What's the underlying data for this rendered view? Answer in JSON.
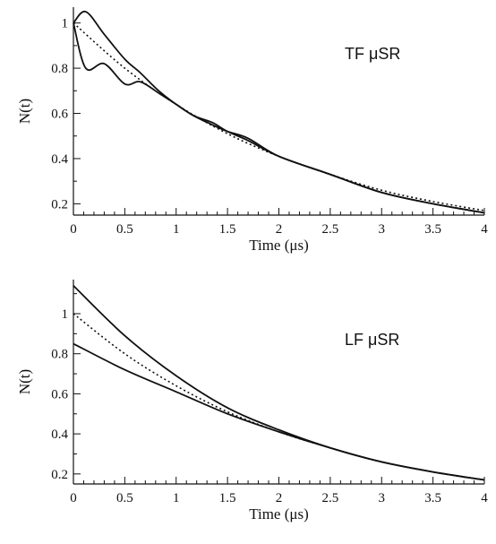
{
  "chart_data": [
    {
      "type": "line",
      "annotation": "TF μSR",
      "xlabel": "Time (μs)",
      "ylabel": "N(t)",
      "xlim": [
        0,
        4
      ],
      "ylim": [
        0.15,
        1.07
      ],
      "x_ticks": [
        "0",
        "0.5",
        "1",
        "1.5",
        "2",
        "2.5",
        "3",
        "3.5",
        "4"
      ],
      "y_ticks": [
        "0.2",
        "0.4",
        "0.6",
        "0.8",
        "1"
      ],
      "x_ticks_values": [
        0,
        0.5,
        1,
        1.5,
        2,
        2.5,
        3,
        3.5,
        4
      ],
      "y_ticks_values": [
        0.2,
        0.4,
        0.6,
        0.8,
        1
      ],
      "series": [
        {
          "style": "solid",
          "x": [
            0,
            0.12,
            0.3,
            0.5,
            0.65,
            0.83,
            1.0,
            1.17,
            1.35,
            1.5,
            1.7,
            2.0,
            2.5,
            3.0,
            3.5,
            4.0
          ],
          "y": [
            1.0,
            1.05,
            0.95,
            0.84,
            0.78,
            0.7,
            0.64,
            0.59,
            0.55,
            0.52,
            0.49,
            0.41,
            0.33,
            0.25,
            0.2,
            0.16
          ]
        },
        {
          "style": "solid",
          "x": [
            0,
            0.12,
            0.3,
            0.5,
            0.65,
            0.83,
            1.0,
            1.17,
            1.35,
            1.5,
            1.7,
            2.0,
            2.5,
            3.0,
            3.5,
            4.0
          ],
          "y": [
            1.0,
            0.8,
            0.82,
            0.73,
            0.74,
            0.69,
            0.64,
            0.59,
            0.56,
            0.52,
            0.48,
            0.41,
            0.33,
            0.25,
            0.2,
            0.16
          ]
        },
        {
          "style": "dotted",
          "x": [
            0,
            0.5,
            1,
            1.5,
            2,
            2.5,
            3,
            3.5,
            4
          ],
          "y": [
            1.0,
            0.8,
            0.64,
            0.51,
            0.41,
            0.33,
            0.26,
            0.21,
            0.17
          ]
        }
      ]
    },
    {
      "type": "line",
      "annotation": "LF μSR",
      "xlabel": "Time (μs)",
      "ylabel": "N(t)",
      "xlim": [
        0,
        4
      ],
      "ylim": [
        0.15,
        1.17
      ],
      "x_ticks": [
        "0",
        "0.5",
        "1",
        "1.5",
        "2",
        "2.5",
        "3",
        "3.5",
        "4"
      ],
      "y_ticks": [
        "0.2",
        "0.4",
        "0.6",
        "0.8",
        "1"
      ],
      "x_ticks_values": [
        0,
        0.5,
        1,
        1.5,
        2,
        2.5,
        3,
        3.5,
        4
      ],
      "y_ticks_values": [
        0.2,
        0.4,
        0.6,
        0.8,
        1
      ],
      "series": [
        {
          "style": "solid",
          "x": [
            0,
            0.5,
            1,
            1.5,
            2,
            2.5,
            3,
            3.5,
            4
          ],
          "y": [
            1.14,
            0.89,
            0.69,
            0.53,
            0.42,
            0.33,
            0.26,
            0.21,
            0.17
          ]
        },
        {
          "style": "solid",
          "x": [
            0,
            0.5,
            1,
            1.5,
            2,
            2.5,
            3,
            3.5,
            4
          ],
          "y": [
            0.85,
            0.72,
            0.61,
            0.5,
            0.41,
            0.33,
            0.26,
            0.21,
            0.17
          ]
        },
        {
          "style": "dotted",
          "x": [
            0,
            0.5,
            1,
            1.5,
            2,
            2.5,
            3,
            3.5,
            4
          ],
          "y": [
            1.0,
            0.8,
            0.64,
            0.51,
            0.41,
            0.33,
            0.26,
            0.21,
            0.17
          ]
        }
      ]
    }
  ]
}
